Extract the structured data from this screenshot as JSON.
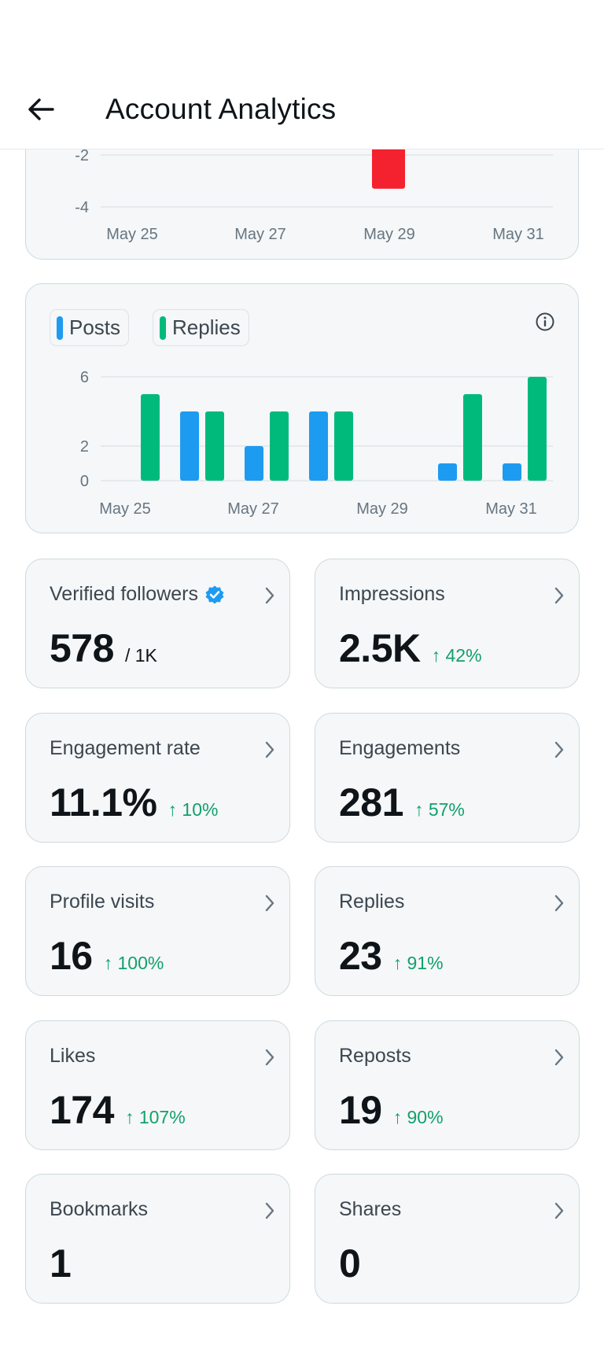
{
  "header": {
    "title": "Account Analytics"
  },
  "chart_top": {
    "type": "bar",
    "x_tick_labels": [
      "May 25",
      "May 27",
      "May 29",
      "May 31"
    ],
    "y_tick_labels": [
      "-2",
      "-4"
    ],
    "colors": {
      "bar": "#f4212e"
    }
  },
  "chart_bottom": {
    "legend": [
      {
        "label": "Posts",
        "color": "#1d9bf0"
      },
      {
        "label": "Replies",
        "color": "#00ba7c"
      }
    ],
    "x_tick_labels": [
      "May 25",
      "May 27",
      "May 29",
      "May 31"
    ],
    "y_tick_labels": [
      "6",
      "2",
      "0"
    ]
  },
  "chart_data": [
    {
      "type": "bar",
      "categories": [
        "May 25",
        "May 26",
        "May 27",
        "May 28",
        "May 29",
        "May 30",
        "May 31"
      ],
      "series": [
        {
          "values": [
            0,
            -0.1,
            -0.1,
            -0.1,
            -3.3,
            0,
            0
          ]
        }
      ],
      "ylim": [
        -4,
        0
      ]
    },
    {
      "type": "bar",
      "categories": [
        "May 25",
        "May 26",
        "May 27",
        "May 28",
        "May 29",
        "May 30",
        "May 31"
      ],
      "series": [
        {
          "name": "Posts",
          "values": [
            0,
            4,
            2,
            4,
            0,
            1,
            1
          ]
        },
        {
          "name": "Replies",
          "values": [
            5,
            4,
            4,
            4,
            0,
            5,
            6
          ]
        }
      ],
      "ylim": [
        0,
        6
      ]
    }
  ],
  "metrics": [
    {
      "title": "Verified followers",
      "value": "578",
      "sub": "/ 1K",
      "change": "",
      "verified": true
    },
    {
      "title": "Impressions",
      "value": "2.5K",
      "sub": "",
      "change": "↑ 42%"
    },
    {
      "title": "Engagement rate",
      "value": "11.1%",
      "sub": "",
      "change": "↑ 10%"
    },
    {
      "title": "Engagements",
      "value": "281",
      "sub": "",
      "change": "↑ 57%"
    },
    {
      "title": "Profile visits",
      "value": "16",
      "sub": "",
      "change": "↑ 100%"
    },
    {
      "title": "Replies",
      "value": "23",
      "sub": "",
      "change": "↑ 91%"
    },
    {
      "title": "Likes",
      "value": "174",
      "sub": "",
      "change": "↑ 107%"
    },
    {
      "title": "Reposts",
      "value": "19",
      "sub": "",
      "change": "↑ 90%"
    },
    {
      "title": "Bookmarks",
      "value": "1",
      "sub": "",
      "change": ""
    },
    {
      "title": "Shares",
      "value": "0",
      "sub": "",
      "change": ""
    }
  ],
  "icons": {
    "back": "arrow-left-icon",
    "info": "info-icon",
    "chevron": "chevron-right-icon",
    "verified": "verified-badge-icon"
  },
  "colors": {
    "accent_blue": "#1d9bf0",
    "accent_green": "#00ba7c",
    "negative_red": "#f4212e",
    "positive_text": "#12a06b"
  }
}
